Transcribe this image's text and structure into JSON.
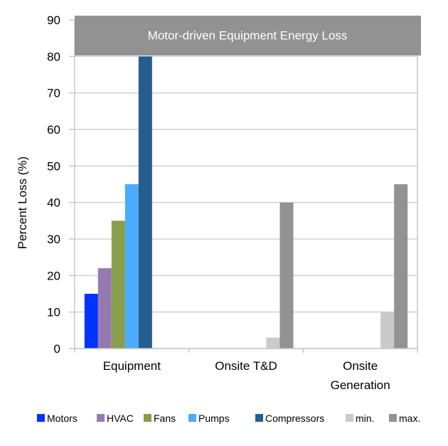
{
  "chart_data": {
    "type": "bar",
    "title": "Motor-driven Equipment Energy Loss",
    "xlabel": "",
    "ylabel": "Percent Loss (%)",
    "ylim": [
      0,
      90
    ],
    "yticks": [
      0,
      10,
      20,
      30,
      40,
      50,
      60,
      70,
      80,
      90
    ],
    "grid": true,
    "legend_position": "bottom",
    "categories": [
      "Equipment",
      "Onsite T&D",
      "Onsite\nGeneration"
    ],
    "series": [
      {
        "name": "Motors",
        "color": "#0433FF",
        "values": [
          15,
          null,
          null
        ]
      },
      {
        "name": "HVAC",
        "color": "#957AB0",
        "values": [
          22,
          null,
          null
        ]
      },
      {
        "name": "Fans",
        "color": "#8A9E4B",
        "values": [
          35,
          null,
          null
        ]
      },
      {
        "name": "Pumps",
        "color": "#4BABFF",
        "values": [
          45,
          null,
          null
        ]
      },
      {
        "name": "Compressors",
        "color": "#265D8F",
        "values": [
          80,
          null,
          null
        ]
      },
      {
        "name": "min.",
        "color": "#CACACA",
        "values": [
          null,
          3,
          10
        ]
      },
      {
        "name": "max.",
        "color": "#929292",
        "values": [
          null,
          40,
          45
        ]
      }
    ],
    "title_banner_color": "#929292"
  }
}
